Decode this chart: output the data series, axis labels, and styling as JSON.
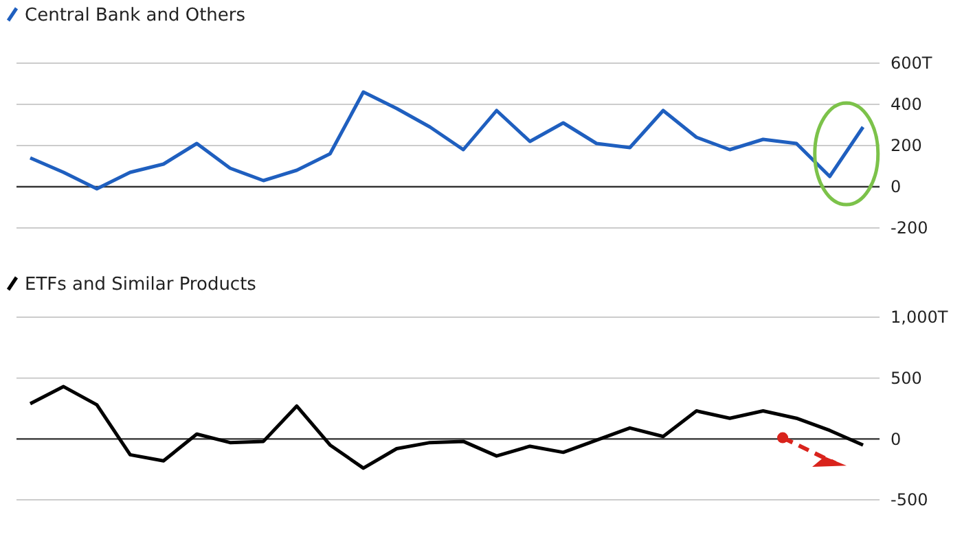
{
  "chart_data": [
    {
      "type": "line",
      "categories": [
        null,
        null,
        null,
        null,
        null,
        null,
        null,
        null,
        null,
        null,
        null,
        null,
        null,
        null,
        null,
        null,
        null,
        null,
        null,
        null,
        null,
        null,
        null,
        null,
        null,
        null
      ],
      "series": [
        {
          "name": "Central Bank and Others",
          "color": "#1f5fbf",
          "values": [
            140,
            70,
            -10,
            70,
            110,
            210,
            90,
            30,
            80,
            160,
            460,
            380,
            290,
            180,
            370,
            220,
            310,
            210,
            190,
            370,
            240,
            180,
            230,
            210,
            50,
            290
          ]
        }
      ],
      "ylim": [
        -200,
        600
      ],
      "yticks": [
        {
          "value": 600,
          "label": "600T"
        },
        400,
        200,
        0,
        -200
      ],
      "grid": "y",
      "legend": "top left"
    },
    {
      "type": "line",
      "categories": [
        null,
        null,
        null,
        null,
        null,
        null,
        null,
        null,
        null,
        null,
        null,
        null,
        null,
        null,
        null,
        null,
        null,
        null,
        null,
        null,
        null,
        null,
        null,
        null,
        null,
        null
      ],
      "series": [
        {
          "name": "ETFs and Similar Products",
          "color": "#000000",
          "values": [
            290,
            430,
            280,
            -130,
            -180,
            40,
            -30,
            -20,
            270,
            -50,
            -240,
            -80,
            -30,
            -20,
            -140,
            -60,
            -110,
            -10,
            90,
            20,
            230,
            170,
            230,
            170,
            70,
            -50
          ]
        }
      ],
      "ylim": [
        -500,
        1000
      ],
      "yticks": [
        {
          "value": 1000,
          "label": "1,000T"
        },
        500,
        0,
        -500
      ],
      "grid": "y",
      "legend": "top left"
    }
  ]
}
